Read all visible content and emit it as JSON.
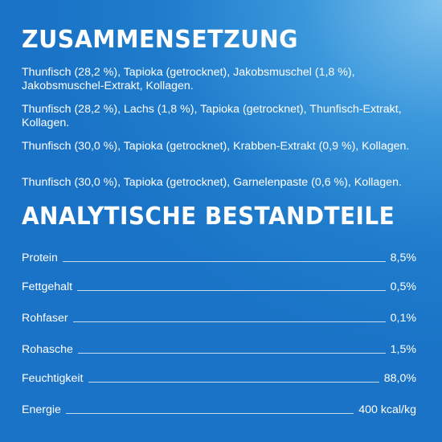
{
  "composition": {
    "title": "ZUSAMMENSETZUNG",
    "lines": [
      "Thunfisch (28,2 %), Tapioka (getrocknet), Jakobsmuschel (1,8 %), Jakobsmuschel-Extrakt, Kollagen.",
      "Thunfisch (28,2 %), Lachs (1,8 %), Tapioka (getrocknet), Thunfisch-Extrakt, Kollagen.",
      "Thunfisch (30,0 %), Tapioka (getrocknet), Krabben-Extrakt (0,9 %), Kollagen.",
      "Thunfisch (30,0 %), Tapioka (getrocknet), Garnelenpaste (0,6 %), Kollagen."
    ]
  },
  "analysis": {
    "title": "ANALYTISCHE BESTANDTEILE",
    "rows": [
      {
        "label": "Protein",
        "value": "8,5%"
      },
      {
        "label": "Fettgehalt",
        "value": "0,5%"
      },
      {
        "label": "Rohfaser",
        "value": "0,1%"
      },
      {
        "label": "Rohasche",
        "value": "1,5%"
      },
      {
        "label": "Feuchtigkeit",
        "value": "88,0%"
      },
      {
        "label": "Energie",
        "value": "400 kcal/kg"
      }
    ]
  },
  "colors": {
    "background_light": "#7fc3ee",
    "background_main": "#1f7ccc",
    "text": "#ffffff"
  }
}
